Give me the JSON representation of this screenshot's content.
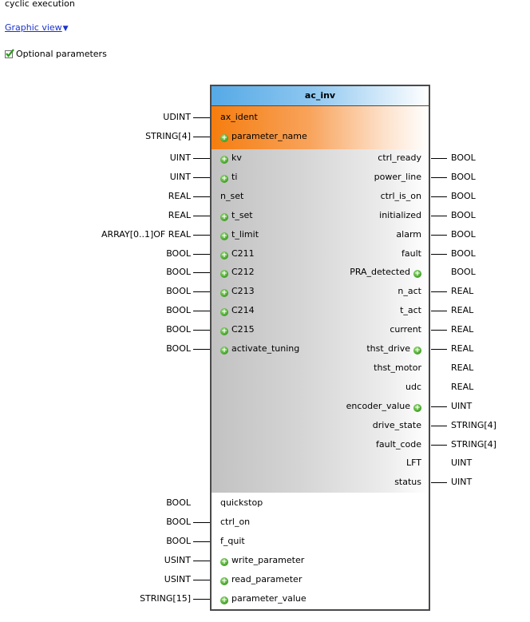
{
  "header": {
    "cyclic_text": "cyclic execution",
    "graphic_view_link": "Graphic view",
    "optional_params_label": "Optional parameters"
  },
  "icons": {
    "checkbox": "green-check-icon",
    "add_pin": "green-plus-circle-icon",
    "dropdown": "triangle-down-icon"
  },
  "colors": {
    "title_gradient": "#55a9e6",
    "orange_section": "#f57d0f",
    "gray_section": "#c2c2c2",
    "link": "#1a33cc",
    "plus_icon": "#45a42a"
  },
  "block": {
    "title": "ac_inv",
    "inputs": [
      {
        "name": "ax_ident",
        "type": "UDINT",
        "optional": false,
        "section": "orange"
      },
      {
        "name": "parameter_name",
        "type": "STRING[4]",
        "optional": true,
        "section": "orange"
      },
      {
        "name": "kv",
        "type": "UINT",
        "optional": true,
        "section": "gray"
      },
      {
        "name": "ti",
        "type": "UINT",
        "optional": true,
        "section": "gray"
      },
      {
        "name": "n_set",
        "type": "REAL",
        "optional": false,
        "section": "gray"
      },
      {
        "name": "t_set",
        "type": "REAL",
        "optional": true,
        "section": "gray"
      },
      {
        "name": "t_limit",
        "type": "ARRAY[0..1]OF REAL",
        "optional": true,
        "section": "gray"
      },
      {
        "name": "C211",
        "type": "BOOL",
        "optional": true,
        "section": "gray"
      },
      {
        "name": "C212",
        "type": "BOOL",
        "optional": true,
        "section": "gray"
      },
      {
        "name": "C213",
        "type": "BOOL",
        "optional": true,
        "section": "gray"
      },
      {
        "name": "C214",
        "type": "BOOL",
        "optional": true,
        "section": "gray"
      },
      {
        "name": "C215",
        "type": "BOOL",
        "optional": true,
        "section": "gray"
      },
      {
        "name": "activate_tuning",
        "type": "BOOL",
        "optional": true,
        "section": "gray"
      },
      {
        "name": "quickstop",
        "type": "BOOL",
        "optional": false,
        "section": "white",
        "line": false
      },
      {
        "name": "ctrl_on",
        "type": "BOOL",
        "optional": false,
        "section": "white"
      },
      {
        "name": "f_quit",
        "type": "BOOL",
        "optional": false,
        "section": "white"
      },
      {
        "name": "write_parameter",
        "type": "USINT",
        "optional": true,
        "section": "white"
      },
      {
        "name": "read_parameter",
        "type": "USINT",
        "optional": true,
        "section": "white"
      },
      {
        "name": "parameter_value",
        "type": "STRING[15]",
        "optional": true,
        "section": "white"
      }
    ],
    "outputs": [
      {
        "name": "ctrl_ready",
        "type": "BOOL",
        "optional": false
      },
      {
        "name": "power_line",
        "type": "BOOL",
        "optional": false
      },
      {
        "name": "ctrl_is_on",
        "type": "BOOL",
        "optional": false
      },
      {
        "name": "initialized",
        "type": "BOOL",
        "optional": false
      },
      {
        "name": "alarm",
        "type": "BOOL",
        "optional": false
      },
      {
        "name": "fault",
        "type": "BOOL",
        "optional": false
      },
      {
        "name": "PRA_detected",
        "type": "BOOL",
        "optional": true,
        "line": false
      },
      {
        "name": "n_act",
        "type": "REAL",
        "optional": false
      },
      {
        "name": "t_act",
        "type": "REAL",
        "optional": false
      },
      {
        "name": "current",
        "type": "REAL",
        "optional": false
      },
      {
        "name": "thst_drive",
        "type": "REAL",
        "optional": true
      },
      {
        "name": "thst_motor",
        "type": "REAL",
        "optional": false,
        "line": false
      },
      {
        "name": "udc",
        "type": "REAL",
        "optional": false,
        "line": false
      },
      {
        "name": "encoder_value",
        "type": "UINT",
        "optional": true
      },
      {
        "name": "drive_state",
        "type": "STRING[4]",
        "optional": false
      },
      {
        "name": "fault_code",
        "type": "STRING[4]",
        "optional": false
      },
      {
        "name": "LFT",
        "type": "UINT",
        "optional": false,
        "line": false
      },
      {
        "name": "status",
        "type": "UINT",
        "optional": false
      }
    ]
  }
}
